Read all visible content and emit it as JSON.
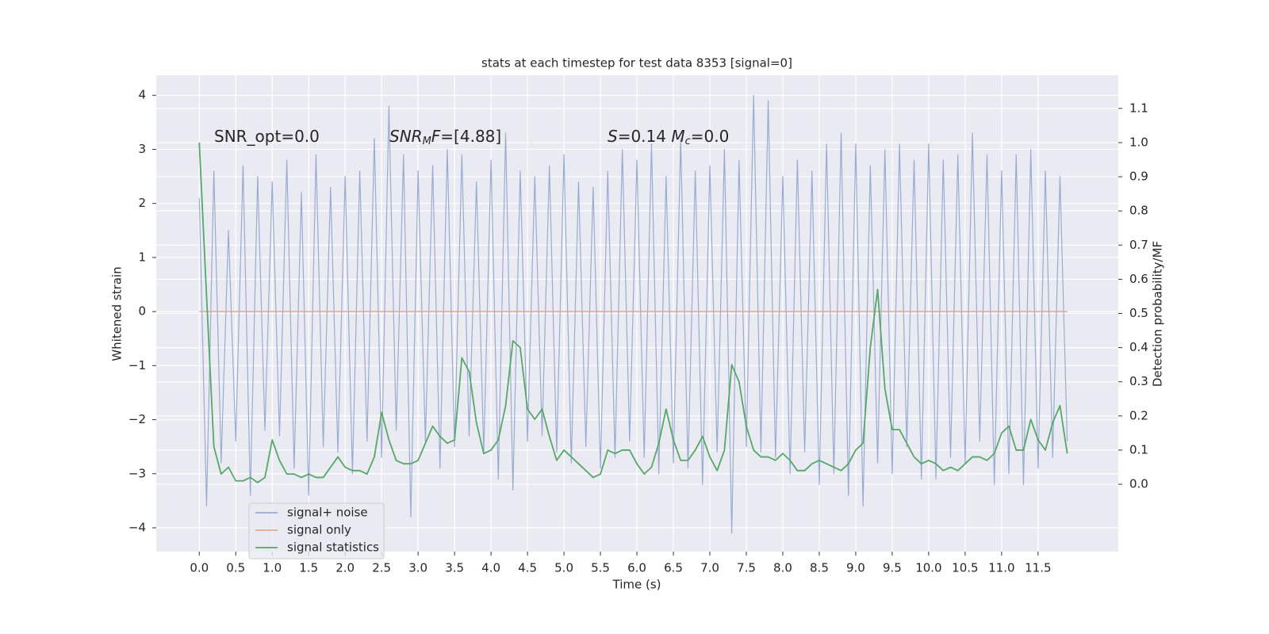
{
  "chart_data": {
    "type": "line",
    "title": "stats at each timestep for test data 8353 [signal=0]",
    "xlabel": "Time (s)",
    "ylabel": "Whitened strain",
    "y2label": "Detection probability/MF",
    "annotations": [
      [
        {
          "text": "SNR_opt=0.0"
        }
      ],
      [
        {
          "text": "SNR",
          "italic": true
        },
        {
          "text": "M",
          "italic": true,
          "sub": true
        },
        {
          "text": "F",
          "italic": true
        },
        {
          "text": "=[4.88]"
        }
      ],
      [
        {
          "text": "S",
          "italic": true
        },
        {
          "text": "=0.14   "
        },
        {
          "text": "M",
          "italic": true
        },
        {
          "text": "c",
          "italic": true,
          "sub": true
        },
        {
          "text": "=0.0"
        }
      ]
    ],
    "x": [
      0.0,
      0.1,
      0.2,
      0.3,
      0.4,
      0.5,
      0.6,
      0.7,
      0.8,
      0.9,
      1.0,
      1.1,
      1.2,
      1.3,
      1.4,
      1.5,
      1.6,
      1.7,
      1.8,
      1.9,
      2.0,
      2.1,
      2.2,
      2.3,
      2.4,
      2.5,
      2.6,
      2.7,
      2.8,
      2.9,
      3.0,
      3.1,
      3.2,
      3.3,
      3.4,
      3.5,
      3.6,
      3.7,
      3.8,
      3.9,
      4.0,
      4.1,
      4.2,
      4.3,
      4.4,
      4.5,
      4.6,
      4.7,
      4.8,
      4.9,
      5.0,
      5.1,
      5.2,
      5.3,
      5.4,
      5.5,
      5.6,
      5.7,
      5.8,
      5.9,
      6.0,
      6.1,
      6.2,
      6.3,
      6.4,
      6.5,
      6.6,
      6.7,
      6.8,
      6.9,
      7.0,
      7.1,
      7.2,
      7.3,
      7.4,
      7.5,
      7.6,
      7.7,
      7.8,
      7.9,
      8.0,
      8.1,
      8.2,
      8.3,
      8.4,
      8.5,
      8.6,
      8.7,
      8.8,
      8.9,
      9.0,
      9.1,
      9.2,
      9.3,
      9.4,
      9.5,
      9.6,
      9.7,
      9.8,
      9.9,
      10.0,
      10.1,
      10.2,
      10.3,
      10.4,
      10.5,
      10.6,
      10.7,
      10.8,
      10.9,
      11.0,
      11.1,
      11.2,
      11.3,
      11.4,
      11.5,
      11.6,
      11.7,
      11.8,
      11.9
    ],
    "series": [
      {
        "name": "signal+ noise",
        "color": "#9aabd1",
        "values": [
          2.1,
          -3.6,
          2.6,
          -2.8,
          1.5,
          -2.4,
          2.7,
          -3.4,
          2.5,
          -2.2,
          2.4,
          -2.3,
          2.8,
          -2.9,
          2.2,
          -3.4,
          2.9,
          -2.5,
          2.3,
          -2.6,
          2.5,
          -3.0,
          2.6,
          -2.4,
          3.2,
          -2.7,
          3.8,
          -2.2,
          2.9,
          -3.8,
          2.6,
          -2.4,
          2.7,
          -2.9,
          3.0,
          -2.5,
          2.9,
          -2.3,
          2.4,
          -2.6,
          2.8,
          -3.1,
          3.3,
          -3.3,
          2.6,
          -2.4,
          2.5,
          -2.3,
          2.7,
          -2.6,
          2.9,
          -2.8,
          2.4,
          -2.5,
          2.3,
          -2.9,
          2.6,
          -2.7,
          3.0,
          -2.4,
          2.8,
          -2.7,
          3.1,
          -3.0,
          2.5,
          -2.8,
          3.2,
          -2.9,
          2.6,
          -3.2,
          2.7,
          -2.6,
          3.0,
          -4.1,
          2.8,
          -2.5,
          4.0,
          -2.6,
          3.9,
          -2.7,
          2.5,
          -3.0,
          2.8,
          -2.6,
          2.6,
          -3.2,
          3.1,
          -3.0,
          3.3,
          -3.4,
          3.1,
          -3.6,
          2.7,
          -2.8,
          3.0,
          -3.0,
          3.1,
          -2.5,
          2.8,
          -3.1,
          3.1,
          -3.1,
          2.8,
          -2.7,
          2.9,
          -2.8,
          3.3,
          -2.4,
          2.9,
          -3.2,
          2.6,
          -3.0,
          2.9,
          -3.2,
          3.0,
          -2.9,
          2.6,
          -2.7,
          2.5,
          -2.4
        ]
      },
      {
        "name": "signal only",
        "color": "#e6a98a",
        "values": [
          0,
          0,
          0,
          0,
          0,
          0,
          0,
          0,
          0,
          0,
          0,
          0,
          0,
          0,
          0,
          0,
          0,
          0,
          0,
          0,
          0,
          0,
          0,
          0,
          0,
          0,
          0,
          0,
          0,
          0,
          0,
          0,
          0,
          0,
          0,
          0,
          0,
          0,
          0,
          0,
          0,
          0,
          0,
          0,
          0,
          0,
          0,
          0,
          0,
          0,
          0,
          0,
          0,
          0,
          0,
          0,
          0,
          0,
          0,
          0,
          0,
          0,
          0,
          0,
          0,
          0,
          0,
          0,
          0,
          0,
          0,
          0,
          0,
          0,
          0,
          0,
          0,
          0,
          0,
          0,
          0,
          0,
          0,
          0,
          0,
          0,
          0,
          0,
          0,
          0,
          0,
          0,
          0,
          0,
          0,
          0,
          0,
          0,
          0,
          0,
          0,
          0,
          0,
          0,
          0,
          0,
          0,
          0,
          0,
          0,
          0,
          0,
          0,
          0,
          0,
          0,
          0,
          0,
          0,
          0
        ]
      },
      {
        "name": "signal statistics",
        "color": "#55a868",
        "axis": "y2",
        "values": [
          1.0,
          0.55,
          0.11,
          0.03,
          0.05,
          0.01,
          0.01,
          0.02,
          0.005,
          0.02,
          0.13,
          0.07,
          0.03,
          0.03,
          0.02,
          0.03,
          0.02,
          0.02,
          0.05,
          0.08,
          0.05,
          0.04,
          0.04,
          0.03,
          0.08,
          0.21,
          0.13,
          0.07,
          0.06,
          0.06,
          0.07,
          0.12,
          0.17,
          0.14,
          0.12,
          0.13,
          0.37,
          0.33,
          0.18,
          0.09,
          0.1,
          0.13,
          0.23,
          0.42,
          0.4,
          0.22,
          0.19,
          0.22,
          0.14,
          0.07,
          0.1,
          0.08,
          0.06,
          0.04,
          0.02,
          0.03,
          0.1,
          0.09,
          0.1,
          0.1,
          0.06,
          0.03,
          0.05,
          0.12,
          0.22,
          0.13,
          0.07,
          0.07,
          0.1,
          0.14,
          0.08,
          0.04,
          0.1,
          0.35,
          0.3,
          0.17,
          0.1,
          0.08,
          0.08,
          0.07,
          0.09,
          0.07,
          0.04,
          0.04,
          0.06,
          0.07,
          0.06,
          0.05,
          0.04,
          0.06,
          0.1,
          0.12,
          0.4,
          0.57,
          0.28,
          0.16,
          0.16,
          0.12,
          0.08,
          0.06,
          0.07,
          0.06,
          0.04,
          0.05,
          0.04,
          0.06,
          0.08,
          0.08,
          0.07,
          0.09,
          0.15,
          0.17,
          0.1,
          0.1,
          0.19,
          0.13,
          0.1,
          0.18,
          0.23,
          0.09
        ]
      }
    ],
    "xlim": [
      -0.59,
      12.6
    ],
    "xticks": [
      {
        "value": 0,
        "label": "0.0"
      },
      {
        "value": 0.5,
        "label": "0.5"
      },
      {
        "value": 1,
        "label": "1.0"
      },
      {
        "value": 1.5,
        "label": "1.5"
      },
      {
        "value": 2,
        "label": "2.0"
      },
      {
        "value": 2.5,
        "label": "2.5"
      },
      {
        "value": 3,
        "label": "3.0"
      },
      {
        "value": 3.5,
        "label": "3.5"
      },
      {
        "value": 4,
        "label": "4.0"
      },
      {
        "value": 4.5,
        "label": "4.5"
      },
      {
        "value": 5,
        "label": "5.0"
      },
      {
        "value": 5.5,
        "label": "5.5"
      },
      {
        "value": 6,
        "label": "6.0"
      },
      {
        "value": 6.5,
        "label": "6.5"
      },
      {
        "value": 7,
        "label": "7.0"
      },
      {
        "value": 7.5,
        "label": "7.5"
      },
      {
        "value": 8,
        "label": "8.0"
      },
      {
        "value": 8.5,
        "label": "8.5"
      },
      {
        "value": 9,
        "label": "9.0"
      },
      {
        "value": 9.5,
        "label": "9.5"
      },
      {
        "value": 10,
        "label": "10.0"
      },
      {
        "value": 10.5,
        "label": "10.5"
      },
      {
        "value": 11,
        "label": "11.0"
      },
      {
        "value": 11.5,
        "label": "11.5"
      }
    ],
    "ylim": [
      -4.44,
      4.37
    ],
    "yticks": [
      {
        "value": -4,
        "label": "−4"
      },
      {
        "value": -3,
        "label": "−3"
      },
      {
        "value": -2,
        "label": "−2"
      },
      {
        "value": -1,
        "label": "−1"
      },
      0,
      1,
      2,
      3,
      4
    ],
    "y2lim": [
      -0.197,
      1.197
    ],
    "y2ticks": [
      {
        "value": 0,
        "label": "0.0"
      },
      {
        "value": 0.1,
        "label": "0.1"
      },
      {
        "value": 0.2,
        "label": "0.2"
      },
      {
        "value": 0.3,
        "label": "0.3"
      },
      {
        "value": 0.4,
        "label": "0.4"
      },
      {
        "value": 0.5,
        "label": "0.5"
      },
      {
        "value": 0.6,
        "label": "0.6"
      },
      {
        "value": 0.7,
        "label": "0.7"
      },
      {
        "value": 0.8,
        "label": "0.8"
      },
      {
        "value": 0.9,
        "label": "0.9"
      },
      {
        "value": 1.0,
        "label": "1.0"
      },
      {
        "value": 1.1,
        "label": "1.1"
      }
    ],
    "grid": true,
    "legend": "lower left"
  }
}
